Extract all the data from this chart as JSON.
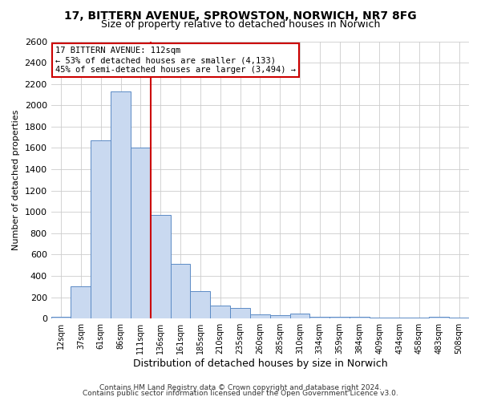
{
  "title_line1": "17, BITTERN AVENUE, SPROWSTON, NORWICH, NR7 8FG",
  "title_line2": "Size of property relative to detached houses in Norwich",
  "xlabel": "Distribution of detached houses by size in Norwich",
  "ylabel": "Number of detached properties",
  "bin_labels": [
    "12sqm",
    "37sqm",
    "61sqm",
    "86sqm",
    "111sqm",
    "136sqm",
    "161sqm",
    "185sqm",
    "210sqm",
    "235sqm",
    "260sqm",
    "285sqm",
    "310sqm",
    "334sqm",
    "359sqm",
    "384sqm",
    "409sqm",
    "434sqm",
    "458sqm",
    "483sqm",
    "508sqm"
  ],
  "bin_values": [
    20,
    300,
    1670,
    2130,
    1600,
    970,
    510,
    255,
    125,
    100,
    40,
    30,
    50,
    20,
    20,
    20,
    10,
    10,
    10,
    15,
    10
  ],
  "bar_color": "#c9d9f0",
  "bar_edge_color": "#5b8ac5",
  "vline_color": "#cc0000",
  "vline_x": 4,
  "annotation_title": "17 BITTERN AVENUE: 112sqm",
  "annotation_line1": "← 53% of detached houses are smaller (4,133)",
  "annotation_line2": "45% of semi-detached houses are larger (3,494) →",
  "annotation_box_edge_color": "#cc0000",
  "annotation_box_face_color": "#ffffff",
  "ylim": [
    0,
    2600
  ],
  "yticks": [
    0,
    200,
    400,
    600,
    800,
    1000,
    1200,
    1400,
    1600,
    1800,
    2000,
    2200,
    2400,
    2600
  ],
  "footer_line1": "Contains HM Land Registry data © Crown copyright and database right 2024.",
  "footer_line2": "Contains public sector information licensed under the Open Government Licence v3.0.",
  "background_color": "#ffffff",
  "plot_background_color": "#ffffff",
  "title_fontsize": 10,
  "subtitle_fontsize": 9,
  "bar_width": 1.0,
  "grid_color": "#cccccc"
}
